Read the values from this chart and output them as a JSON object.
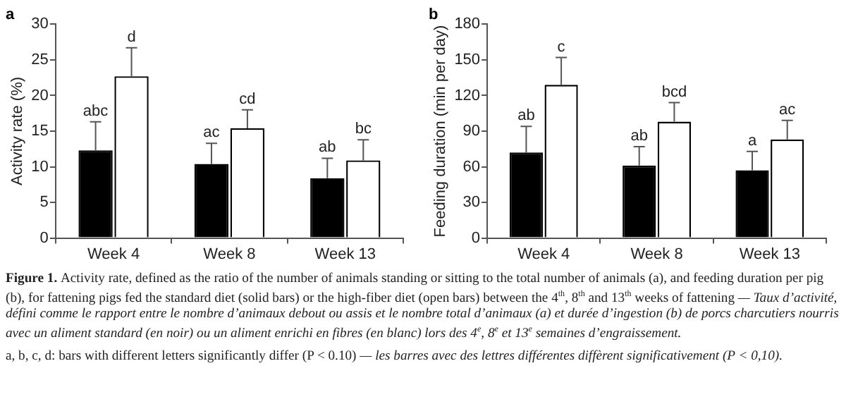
{
  "chart_data": [
    {
      "type": "bar",
      "title": "a",
      "ylabel": "Activity rate (%)",
      "categories": [
        "Week 4",
        "Week 8",
        "Week 13"
      ],
      "ylim": [
        0,
        30
      ],
      "yticks": [
        0,
        5,
        10,
        15,
        20,
        25,
        30
      ],
      "grid": false,
      "legend": false,
      "series": [
        {
          "color": "#000000",
          "values": [
            12.3,
            10.4,
            8.4
          ],
          "errors": [
            [
              12.3,
              16.3
            ],
            [
              10.4,
              13.3
            ],
            [
              8.4,
              11.2
            ]
          ],
          "value_labels": [
            "abc",
            "ac",
            "ab"
          ]
        },
        {
          "color": "#ffffff",
          "values": [
            22.7,
            15.4,
            10.9
          ],
          "errors": [
            [
              22.7,
              26.7
            ],
            [
              15.4,
              18.0
            ],
            [
              10.9,
              13.8
            ]
          ],
          "value_labels": [
            "d",
            "cd",
            "bc"
          ]
        }
      ]
    },
    {
      "type": "bar",
      "title": "b",
      "ylabel": "Feeding duration (min per day)",
      "categories": [
        "Week 4",
        "Week 8",
        "Week 13"
      ],
      "ylim": [
        0,
        180
      ],
      "yticks": [
        0,
        30,
        60,
        90,
        120,
        150,
        180
      ],
      "grid": false,
      "legend": false,
      "series": [
        {
          "color": "#000000",
          "values": [
            72,
            61,
            57
          ],
          "errors": [
            [
              72,
              94
            ],
            [
              61,
              77
            ],
            [
              57,
              73
            ]
          ],
          "value_labels": [
            "ab",
            "ab",
            "a"
          ]
        },
        {
          "color": "#ffffff",
          "values": [
            129,
            98,
            83
          ],
          "errors": [
            [
              129,
              152
            ],
            [
              98,
              114
            ],
            [
              83,
              99
            ]
          ],
          "value_labels": [
            "c",
            "bcd",
            "ac"
          ]
        }
      ],
      "annotations": [
        "Figure 1.",
        "Activity rate, defined as the ratio of the number of animals standing or sitting to the total number of animals (a), and feeding duration per pig (b), for fattening pigs fed the standard diet (solid bars) or the high-fiber diet (open bars) between the 4$^{th}$, 8$^{th}$ and 13$^{th}$ weeks of fattening",
        "— Taux d’activité, défini comme le rapport entre le nombre d’animaux debout ou assis et le nombre total d’animaux (a) et durée d’ingestion (b) de porcs charcutiers nourris avec un aliment standard (en noir) ou un aliment enrichi en fibres (en blanc) lors des 4$^{e}$, 8$^{e}$ et 13$^{e}$ semaines d’engraissement.",
        "a, b, c, d: bars with different letters significantly differ (P < 0.10)",
        "— les barres avec des lettres différentes diffèrent significativement (P < 0,10)."
      ]
    }
  ]
}
